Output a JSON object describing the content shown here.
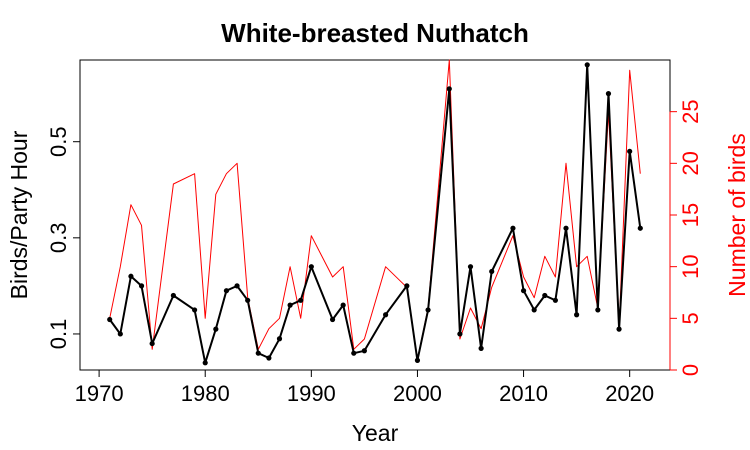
{
  "chart_data": {
    "type": "line",
    "title": "White-breasted Nuthatch",
    "xlabel": "Year",
    "ylabel": "Birds/Party Hour",
    "y2label": "Number of birds",
    "xlim": [
      1968.2,
      2023.8
    ],
    "xticks": [
      1970,
      1980,
      1990,
      2000,
      2010,
      2020
    ],
    "ylim": [
      0.025,
      0.67
    ],
    "yticks": [
      0.1,
      0.3,
      0.5
    ],
    "y2lim": [
      0,
      30
    ],
    "y2ticks": [
      0,
      5,
      10,
      15,
      20,
      25
    ],
    "grid": false,
    "colors": {
      "primary": "#000000",
      "secondary": "#ff0000"
    },
    "series": [
      {
        "axis": "left",
        "color": "#000000",
        "markers": true,
        "points": [
          [
            1971,
            0.13
          ],
          [
            1972,
            0.1
          ],
          [
            1973,
            0.22
          ],
          [
            1974,
            0.2
          ],
          [
            1975,
            0.08
          ],
          [
            1977,
            0.18
          ],
          [
            1979,
            0.15
          ],
          [
            1980,
            0.04
          ],
          [
            1981,
            0.11
          ],
          [
            1982,
            0.19
          ],
          [
            1983,
            0.2
          ],
          [
            1984,
            0.17
          ],
          [
            1985,
            0.06
          ],
          [
            1986,
            0.05
          ],
          [
            1987,
            0.09
          ],
          [
            1988,
            0.16
          ],
          [
            1989,
            0.17
          ],
          [
            1990,
            0.24
          ],
          [
            1992,
            0.13
          ],
          [
            1993,
            0.16
          ],
          [
            1994,
            0.06
          ],
          [
            1995,
            0.065
          ],
          [
            1997,
            0.14
          ],
          [
            1999,
            0.2
          ],
          [
            2000,
            0.045
          ],
          [
            2001,
            0.15
          ],
          [
            2003,
            0.61
          ],
          [
            2004,
            0.1
          ],
          [
            2005,
            0.24
          ],
          [
            2006,
            0.07
          ],
          [
            2007,
            0.23
          ],
          [
            2009,
            0.32
          ],
          [
            2010,
            0.19
          ],
          [
            2011,
            0.15
          ],
          [
            2012,
            0.18
          ],
          [
            2013,
            0.17
          ],
          [
            2014,
            0.32
          ],
          [
            2015,
            0.14
          ],
          [
            2016,
            0.66
          ],
          [
            2017,
            0.15
          ],
          [
            2018,
            0.6
          ],
          [
            2019,
            0.11
          ],
          [
            2020,
            0.48
          ],
          [
            2021,
            0.32
          ]
        ]
      },
      {
        "axis": "right",
        "color": "#ff0000",
        "markers": false,
        "points": [
          [
            1971,
            5
          ],
          [
            1972,
            10
          ],
          [
            1973,
            16
          ],
          [
            1974,
            14
          ],
          [
            1975,
            2
          ],
          [
            1977,
            18
          ],
          [
            1979,
            19
          ],
          [
            1980,
            5
          ],
          [
            1981,
            17
          ],
          [
            1982,
            19
          ],
          [
            1983,
            20
          ],
          [
            1984,
            7
          ],
          [
            1985,
            2
          ],
          [
            1986,
            4
          ],
          [
            1987,
            5
          ],
          [
            1988,
            10
          ],
          [
            1989,
            5
          ],
          [
            1990,
            13
          ],
          [
            1992,
            9
          ],
          [
            1993,
            10
          ],
          [
            1994,
            2
          ],
          [
            1995,
            3
          ],
          [
            1997,
            10
          ],
          [
            1999,
            8
          ],
          [
            2000,
            1
          ],
          [
            2001,
            6
          ],
          [
            2003,
            30
          ],
          [
            2004,
            3
          ],
          [
            2005,
            6
          ],
          [
            2006,
            4
          ],
          [
            2007,
            8
          ],
          [
            2009,
            13
          ],
          [
            2010,
            9
          ],
          [
            2011,
            7
          ],
          [
            2012,
            11
          ],
          [
            2013,
            9
          ],
          [
            2014,
            20
          ],
          [
            2015,
            10
          ],
          [
            2016,
            11
          ],
          [
            2017,
            6
          ],
          [
            2018,
            25
          ],
          [
            2019,
            4
          ],
          [
            2020,
            29
          ],
          [
            2021,
            19
          ]
        ]
      }
    ]
  }
}
